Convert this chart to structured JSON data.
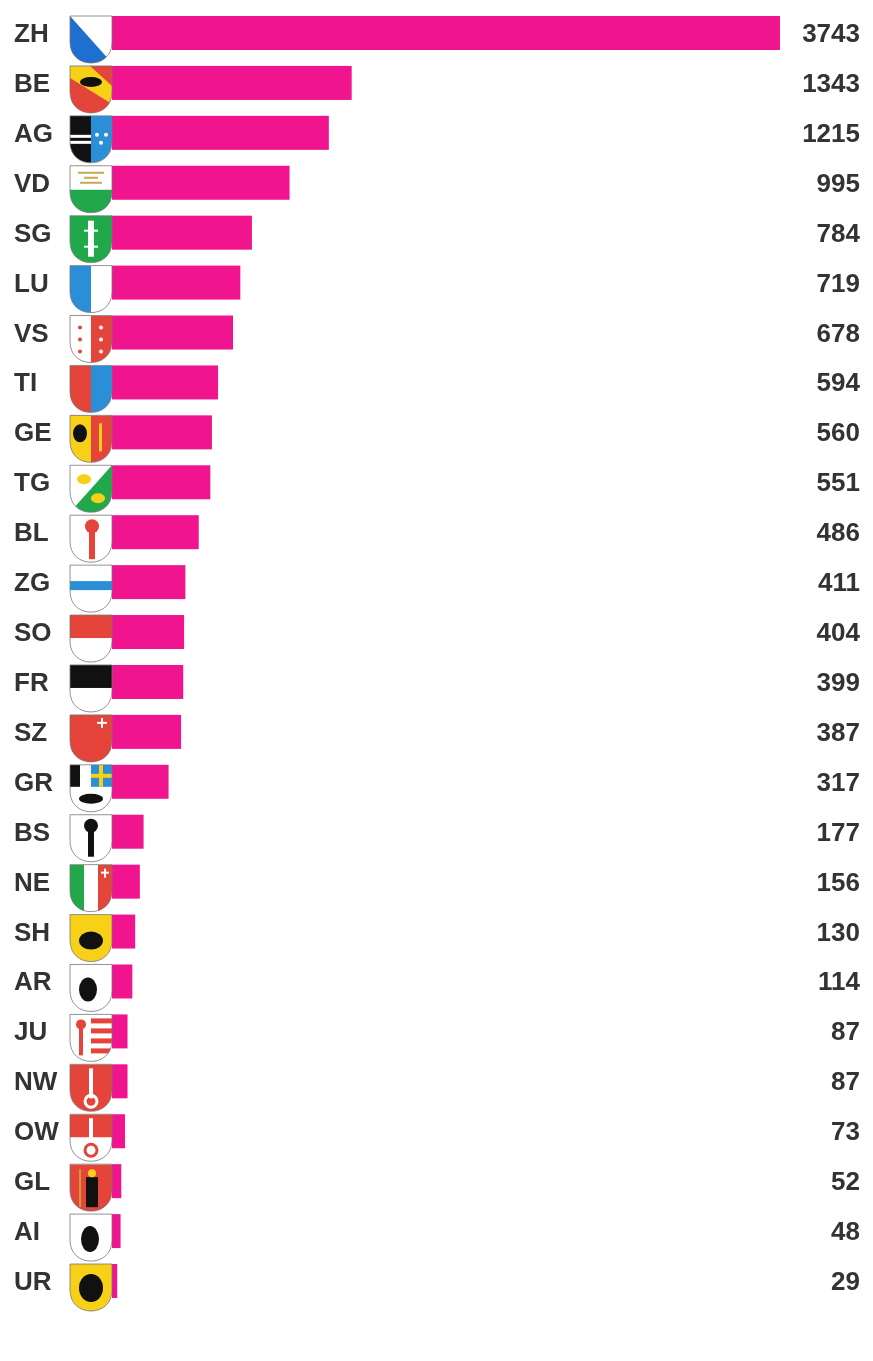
{
  "chart_data": {
    "type": "bar",
    "orientation": "horizontal",
    "categories": [
      "ZH",
      "BE",
      "AG",
      "VD",
      "SG",
      "LU",
      "VS",
      "TI",
      "GE",
      "TG",
      "BL",
      "ZG",
      "SO",
      "FR",
      "SZ",
      "GR",
      "BS",
      "NE",
      "SH",
      "AR",
      "JU",
      "NW",
      "OW",
      "GL",
      "AI",
      "UR"
    ],
    "values": [
      3743,
      1343,
      1215,
      995,
      784,
      719,
      678,
      594,
      560,
      551,
      486,
      411,
      404,
      399,
      387,
      317,
      177,
      156,
      130,
      114,
      87,
      87,
      73,
      52,
      48,
      29
    ],
    "color": "#f0158f",
    "data_labels": true,
    "tick_labels": "y"
  }
}
